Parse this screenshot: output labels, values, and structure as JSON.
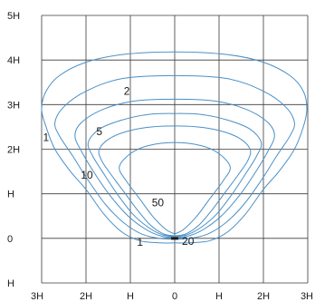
{
  "chart_data": {
    "type": "contour",
    "x_unit": "H",
    "y_unit": "H",
    "xlim": [
      -3,
      3
    ],
    "ylim": [
      -1,
      5
    ],
    "x_ticks": [
      {
        "value": -3,
        "label": "3H"
      },
      {
        "value": -2,
        "label": "2H"
      },
      {
        "value": -1,
        "label": "H"
      },
      {
        "value": 0,
        "label": "0"
      },
      {
        "value": 1,
        "label": "H"
      },
      {
        "value": 2,
        "label": "2H"
      },
      {
        "value": 3,
        "label": "3H"
      }
    ],
    "y_ticks": [
      {
        "value": 5,
        "label": "5H"
      },
      {
        "value": 4,
        "label": "4H"
      },
      {
        "value": 3,
        "label": "3H"
      },
      {
        "value": 2,
        "label": "2H"
      },
      {
        "value": 1,
        "label": "H"
      },
      {
        "value": 0,
        "label": "0"
      },
      {
        "value": -1,
        "label": "H"
      }
    ],
    "grid": true,
    "line_color": "#4a90c8",
    "source_marker": {
      "x": 0,
      "y": 0
    },
    "contours": [
      {
        "label": "1",
        "label_at": [
          -2.9,
          2.25
        ],
        "label2": "1",
        "label2_at": [
          -0.78,
          -0.1
        ],
        "points": [
          [
            0,
            -0.1
          ],
          [
            -0.35,
            -0.1
          ],
          [
            -0.8,
            -0.05
          ],
          [
            -1.2,
            0.15
          ],
          [
            -1.6,
            0.55
          ],
          [
            -2.0,
            1.1
          ],
          [
            -2.35,
            1.5
          ],
          [
            -2.7,
            2.0
          ],
          [
            -2.9,
            2.5
          ],
          [
            -3.0,
            2.9
          ],
          [
            -2.9,
            3.3
          ],
          [
            -2.6,
            3.65
          ],
          [
            -2.0,
            3.95
          ],
          [
            -1.2,
            4.12
          ],
          [
            0,
            4.18
          ],
          [
            1.2,
            4.12
          ],
          [
            2.0,
            3.95
          ],
          [
            2.6,
            3.65
          ],
          [
            2.9,
            3.3
          ],
          [
            2.98,
            2.9
          ],
          [
            2.9,
            2.5
          ],
          [
            2.7,
            2.0
          ],
          [
            2.35,
            1.5
          ],
          [
            2.0,
            1.1
          ],
          [
            1.6,
            0.55
          ],
          [
            1.2,
            0.15
          ],
          [
            0.8,
            -0.05
          ],
          [
            0.35,
            -0.1
          ],
          [
            0,
            -0.1
          ]
        ]
      },
      {
        "label": "2",
        "label_at": [
          -1.08,
          3.28
        ],
        "points": [
          [
            0,
            -0.02
          ],
          [
            -0.35,
            0
          ],
          [
            -0.75,
            0.1
          ],
          [
            -1.15,
            0.35
          ],
          [
            -1.55,
            0.75
          ],
          [
            -1.95,
            1.3
          ],
          [
            -2.3,
            1.85
          ],
          [
            -2.6,
            2.3
          ],
          [
            -2.7,
            2.6
          ],
          [
            -2.5,
            2.95
          ],
          [
            -2.0,
            3.3
          ],
          [
            -1.2,
            3.58
          ],
          [
            0,
            3.65
          ],
          [
            1.2,
            3.58
          ],
          [
            2.0,
            3.3
          ],
          [
            2.5,
            2.95
          ],
          [
            2.7,
            2.6
          ],
          [
            2.6,
            2.3
          ],
          [
            2.3,
            1.85
          ],
          [
            1.95,
            1.3
          ],
          [
            1.55,
            0.75
          ],
          [
            1.15,
            0.35
          ],
          [
            0.75,
            0.1
          ],
          [
            0.35,
            0
          ],
          [
            0,
            -0.02
          ]
        ]
      },
      {
        "label": "5",
        "label_at": [
          -1.7,
          2.38
        ],
        "points": [
          [
            0,
            0.02
          ],
          [
            -0.3,
            0.05
          ],
          [
            -0.65,
            0.2
          ],
          [
            -1.05,
            0.5
          ],
          [
            -1.45,
            0.95
          ],
          [
            -1.8,
            1.45
          ],
          [
            -2.1,
            1.95
          ],
          [
            -2.25,
            2.3
          ],
          [
            -2.1,
            2.6
          ],
          [
            -1.6,
            2.9
          ],
          [
            -0.9,
            3.08
          ],
          [
            0,
            3.12
          ],
          [
            0.9,
            3.08
          ],
          [
            1.6,
            2.9
          ],
          [
            2.1,
            2.6
          ],
          [
            2.25,
            2.3
          ],
          [
            2.1,
            1.95
          ],
          [
            1.8,
            1.45
          ],
          [
            1.45,
            0.95
          ],
          [
            1.05,
            0.5
          ],
          [
            0.65,
            0.2
          ],
          [
            0.3,
            0.05
          ],
          [
            0,
            0.02
          ]
        ]
      },
      {
        "label": "10",
        "label_at": [
          -1.98,
          1.4
        ],
        "points": [
          [
            0,
            0.04
          ],
          [
            -0.28,
            0.08
          ],
          [
            -0.6,
            0.25
          ],
          [
            -0.95,
            0.55
          ],
          [
            -1.3,
            1.0
          ],
          [
            -1.6,
            1.45
          ],
          [
            -1.85,
            1.85
          ],
          [
            -1.95,
            2.15
          ],
          [
            -1.7,
            2.45
          ],
          [
            -1.2,
            2.65
          ],
          [
            -0.6,
            2.78
          ],
          [
            0,
            2.8
          ],
          [
            0.6,
            2.78
          ],
          [
            1.2,
            2.65
          ],
          [
            1.7,
            2.45
          ],
          [
            1.95,
            2.15
          ],
          [
            1.85,
            1.85
          ],
          [
            1.6,
            1.45
          ],
          [
            1.3,
            1.0
          ],
          [
            0.95,
            0.55
          ],
          [
            0.6,
            0.25
          ],
          [
            0.28,
            0.08
          ],
          [
            0,
            0.04
          ]
        ]
      },
      {
        "label": "20",
        "label_at": [
          0.3,
          -0.08
        ],
        "points": [
          [
            0,
            0.06
          ],
          [
            -0.25,
            0.1
          ],
          [
            -0.55,
            0.3
          ],
          [
            -0.85,
            0.65
          ],
          [
            -1.15,
            1.05
          ],
          [
            -1.45,
            1.45
          ],
          [
            -1.65,
            1.75
          ],
          [
            -1.7,
            2.0
          ],
          [
            -1.45,
            2.25
          ],
          [
            -1.0,
            2.42
          ],
          [
            -0.5,
            2.5
          ],
          [
            0,
            2.52
          ],
          [
            0.5,
            2.5
          ],
          [
            1.0,
            2.42
          ],
          [
            1.45,
            2.25
          ],
          [
            1.7,
            2.0
          ],
          [
            1.65,
            1.75
          ],
          [
            1.45,
            1.45
          ],
          [
            1.15,
            1.05
          ],
          [
            0.85,
            0.65
          ],
          [
            0.55,
            0.3
          ],
          [
            0.25,
            0.1
          ],
          [
            0,
            0.06
          ]
        ]
      },
      {
        "label": "50",
        "label_at": [
          -0.38,
          0.78
        ],
        "points": [
          [
            0,
            0.1
          ],
          [
            -0.2,
            0.2
          ],
          [
            -0.5,
            0.5
          ],
          [
            -0.8,
            0.9
          ],
          [
            -1.1,
            1.3
          ],
          [
            -1.25,
            1.6
          ],
          [
            -1.0,
            1.9
          ],
          [
            -0.6,
            2.08
          ],
          [
            0,
            2.15
          ],
          [
            0.6,
            2.08
          ],
          [
            1.0,
            1.9
          ],
          [
            1.25,
            1.6
          ],
          [
            1.1,
            1.3
          ],
          [
            0.8,
            0.9
          ],
          [
            0.5,
            0.5
          ],
          [
            0.2,
            0.2
          ],
          [
            0,
            0.1
          ]
        ]
      }
    ]
  }
}
